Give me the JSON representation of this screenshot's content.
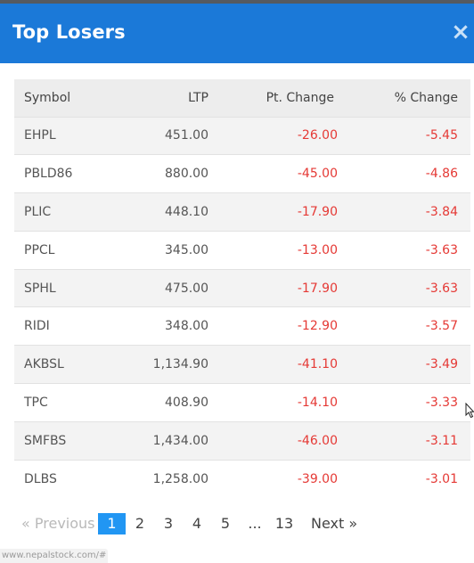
{
  "modal": {
    "title": "Top Losers",
    "close_glyph": "×"
  },
  "table": {
    "columns": [
      "Symbol",
      "LTP",
      "Pt. Change",
      "% Change"
    ],
    "rows": [
      {
        "symbol": "EHPL",
        "ltp": "451.00",
        "pt_change": "-26.00",
        "pct_change": "-5.45"
      },
      {
        "symbol": "PBLD86",
        "ltp": "880.00",
        "pt_change": "-45.00",
        "pct_change": "-4.86"
      },
      {
        "symbol": "PLIC",
        "ltp": "448.10",
        "pt_change": "-17.90",
        "pct_change": "-3.84"
      },
      {
        "symbol": "PPCL",
        "ltp": "345.00",
        "pt_change": "-13.00",
        "pct_change": "-3.63"
      },
      {
        "symbol": "SPHL",
        "ltp": "475.00",
        "pt_change": "-17.90",
        "pct_change": "-3.63"
      },
      {
        "symbol": "RIDI",
        "ltp": "348.00",
        "pt_change": "-12.90",
        "pct_change": "-3.57"
      },
      {
        "symbol": "AKBSL",
        "ltp": "1,134.90",
        "pt_change": "-41.10",
        "pct_change": "-3.49"
      },
      {
        "symbol": "TPC",
        "ltp": "408.90",
        "pt_change": "-14.10",
        "pct_change": "-3.33"
      },
      {
        "symbol": "SMFBS",
        "ltp": "1,434.00",
        "pt_change": "-46.00",
        "pct_change": "-3.11"
      },
      {
        "symbol": "DLBS",
        "ltp": "1,258.00",
        "pt_change": "-39.00",
        "pct_change": "-3.01"
      }
    ]
  },
  "pagination": {
    "previous": "« Previous",
    "pages": [
      "1",
      "2",
      "3",
      "4",
      "5"
    ],
    "ellipsis": "...",
    "last": "13",
    "next": "Next »",
    "current": "1"
  },
  "statusbar": {
    "url": "www.nepalstock.com/#"
  },
  "colors": {
    "header_bg": "#1b79d8",
    "negative": "#e53935",
    "active_page": "#2196f3"
  },
  "icons": {
    "close": "close-icon",
    "cursor": "mouse-cursor-icon"
  }
}
